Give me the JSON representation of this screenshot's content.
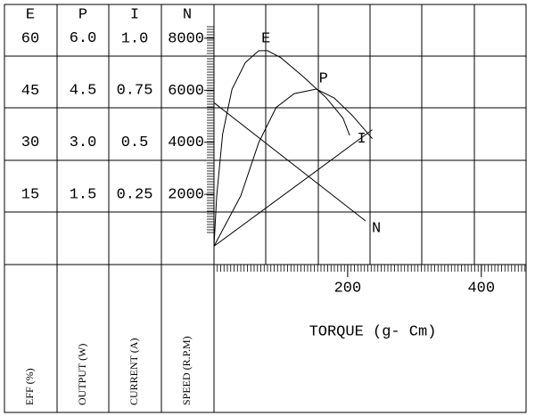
{
  "chart_data": {
    "type": "line",
    "x_label": "TORQUE (g- Cm)",
    "xlim": [
      0,
      467
    ],
    "xticks": [
      200,
      400
    ],
    "series": [
      {
        "name": "E",
        "axis_label": "EFF (%)",
        "color": "#000000",
        "ylim": [
          -5.26,
          69.74
        ],
        "yticks": [
          15,
          30,
          45,
          60
        ],
        "x": [
          0,
          4,
          13,
          27,
          47,
          67,
          80,
          100,
          133,
          167,
          193,
          203
        ],
        "values": [
          0,
          14.5,
          32.4,
          45.3,
          53,
          56.4,
          56.4,
          54.4,
          49,
          43,
          37,
          32
        ]
      },
      {
        "name": "P",
        "axis_label": "OUTPUT (W)",
        "color": "#000000",
        "ylim": [
          -0.53,
          6.97
        ],
        "yticks": [
          1.5,
          {
            "value": 3,
            "label": "3.0"
          },
          4.5,
          {
            "value": 6,
            "label": "6.0"
          }
        ],
        "x": [
          0,
          40,
          67,
          93,
          120,
          153,
          180,
          207,
          237
        ],
        "values": [
          0,
          1.45,
          2.99,
          4.0,
          4.4,
          4.53,
          4.27,
          3.77,
          3.1
        ]
      },
      {
        "name": "I",
        "axis_label": "CURRENT (A)",
        "color": "#000000",
        "ylim": [
          -0.088,
          1.162
        ],
        "yticks": [
          0.25,
          0.5,
          0.75,
          {
            "value": 1,
            "label": "1.0"
          }
        ],
        "x": [
          0,
          237
        ],
        "values": [
          0,
          0.56
        ]
      },
      {
        "name": "N",
        "axis_label": "SPEED (R.P.M)",
        "color": "#000000",
        "ylim": [
          -701,
          9299
        ],
        "yticks": [
          2000,
          4000,
          6000,
          8000
        ],
        "x": [
          0,
          227
        ],
        "values": [
          5521,
          974
        ]
      }
    ]
  }
}
